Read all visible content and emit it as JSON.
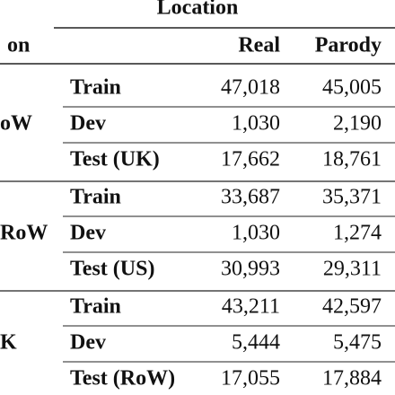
{
  "header": {
    "title": "Location"
  },
  "table": {
    "columns": [
      "on",
      "Real",
      "Parody"
    ],
    "groups": [
      {
        "label": "oW",
        "rows": [
          [
            "Train",
            "47,018",
            "45,005"
          ],
          [
            "Dev",
            "1,030",
            "2,190"
          ],
          [
            "Test (UK)",
            "17,662",
            "18,761"
          ]
        ]
      },
      {
        "label": "RoW",
        "rows": [
          [
            "Train",
            "33,687",
            "35,371"
          ],
          [
            "Dev",
            "1,030",
            "1,274"
          ],
          [
            "Test (US)",
            "30,993",
            "29,311"
          ]
        ]
      },
      {
        "label": "K",
        "rows": [
          [
            "Train",
            "43,211",
            "42,597"
          ],
          [
            "Dev",
            "5,444",
            "5,475"
          ],
          [
            "Test (RoW)",
            "17,055",
            "17,884"
          ]
        ]
      }
    ]
  }
}
